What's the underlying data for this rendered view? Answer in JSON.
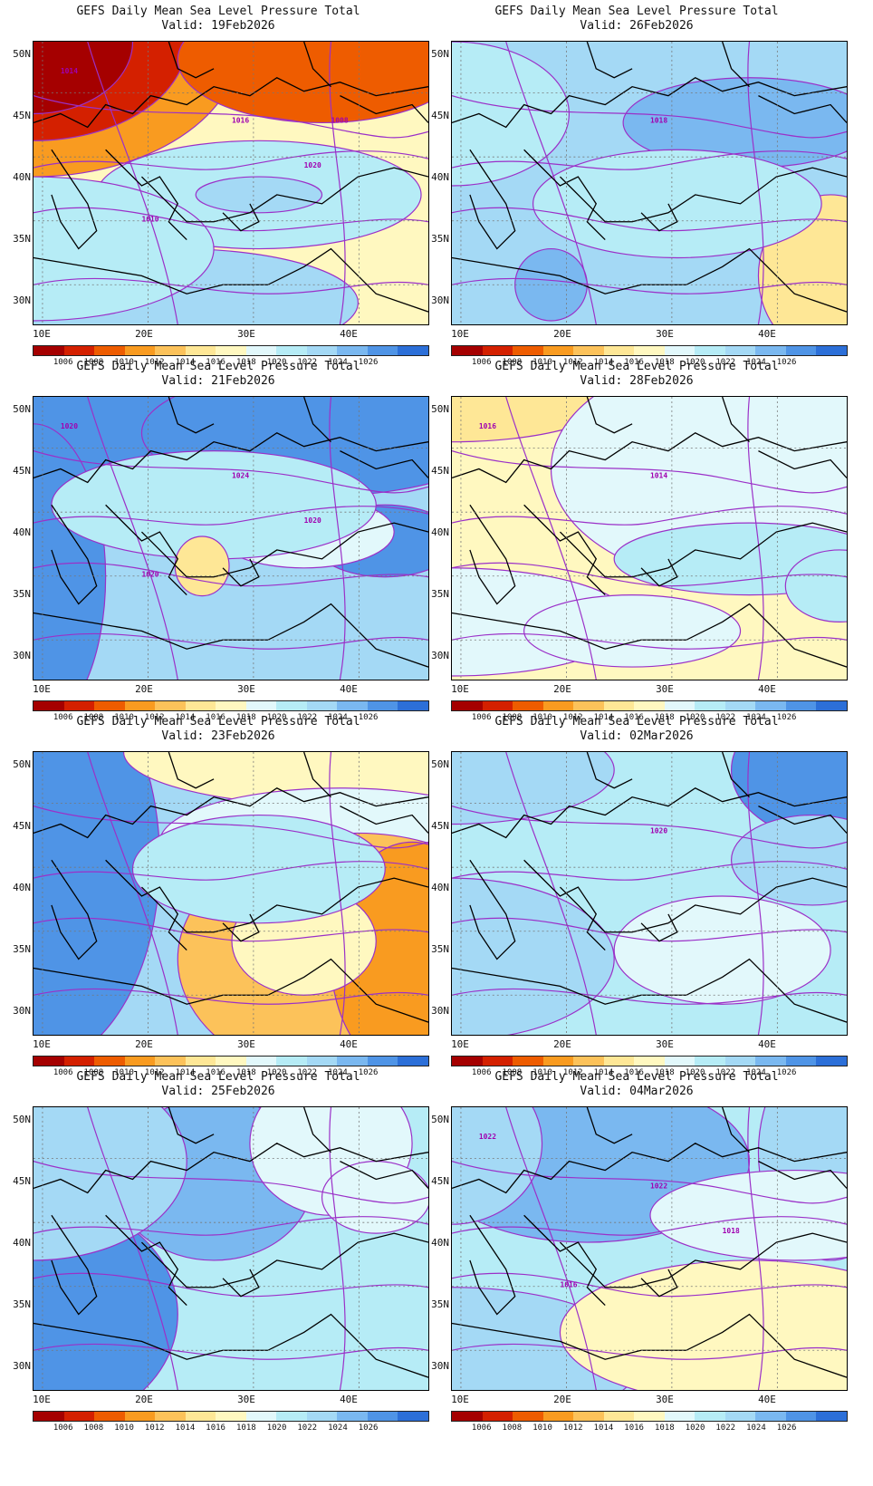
{
  "panels": [
    {
      "title": "GEFS Daily Mean Sea Level Pressure Total",
      "valid": "Valid: 19Feb2026",
      "scheme": "low",
      "labels": [
        "1016",
        "1014",
        "1020",
        "1010",
        "1008"
      ]
    },
    {
      "title": "GEFS Daily Mean Sea Level Pressure Total",
      "valid": "Valid: 26Feb2026",
      "scheme": "mid",
      "labels": [
        "1018"
      ]
    },
    {
      "title": "GEFS Daily Mean Sea Level Pressure Total",
      "valid": "Valid: 21Feb2026",
      "scheme": "high",
      "labels": [
        "1024",
        "1020",
        "1020",
        "1020"
      ]
    },
    {
      "title": "GEFS Daily Mean Sea Level Pressure Total",
      "valid": "Valid: 28Feb2026",
      "scheme": "weak",
      "labels": [
        "1014",
        "1016"
      ]
    },
    {
      "title": "GEFS Daily Mean Sea Level Pressure Total",
      "valid": "Valid: 23Feb2026",
      "scheme": "split",
      "labels": []
    },
    {
      "title": "GEFS Daily Mean Sea Level Pressure Total",
      "valid": "Valid: 02Mar2026",
      "scheme": "mid2",
      "labels": [
        "1020"
      ]
    },
    {
      "title": "GEFS Daily Mean Sea Level Pressure Total",
      "valid": "Valid: 25Feb2026",
      "scheme": "high2",
      "labels": []
    },
    {
      "title": "GEFS Daily Mean Sea Level Pressure Total",
      "valid": "Valid: 04Mar2026",
      "scheme": "mix",
      "labels": [
        "1022",
        "1022",
        "1018",
        "1016"
      ]
    }
  ],
  "lat_labels": [
    "50N",
    "45N",
    "40N",
    "35N",
    "30N"
  ],
  "lon_labels": [
    "10E",
    "20E",
    "30E",
    "40E"
  ],
  "colorbar": {
    "colors": [
      "#a50000",
      "#d42000",
      "#ee5c00",
      "#f99b20",
      "#fcc25a",
      "#fee796",
      "#fff8c0",
      "#e2f8fb",
      "#b6ecf6",
      "#a4d9f5",
      "#7ab8f0",
      "#4f94e6",
      "#2c6fd8"
    ],
    "labels": [
      "1006",
      "1008",
      "1010",
      "1012",
      "1014",
      "1016",
      "1018",
      "1020",
      "1022",
      "1024",
      "1026"
    ]
  }
}
